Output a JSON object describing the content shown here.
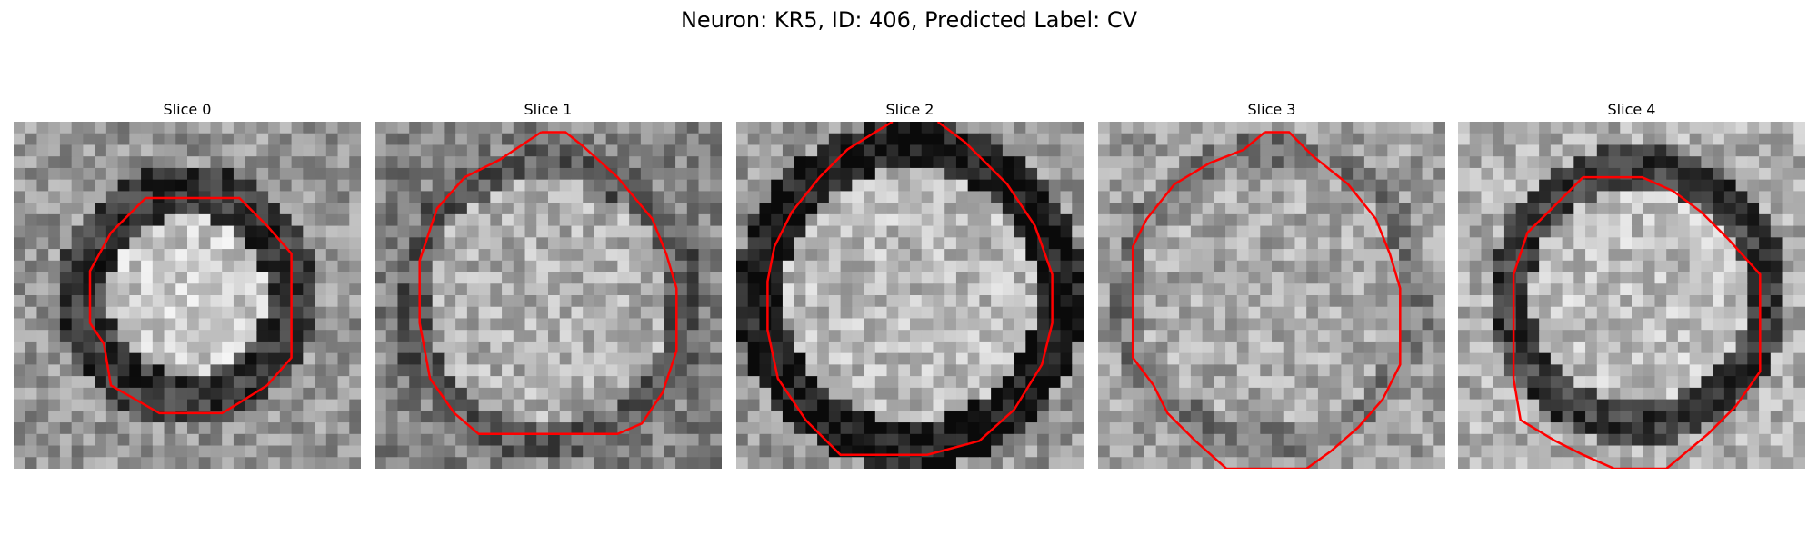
{
  "figure": {
    "title": "Neuron: KR5, ID: 406, Predicted Label: CV",
    "panels": [
      {
        "label": "Slice 0",
        "image": "noisy grayscale microscopy crop with dark ring around bright round cell body"
      },
      {
        "label": "Slice 1",
        "image": "noisy grayscale microscopy crop with large bright round cell body"
      },
      {
        "label": "Slice 2",
        "image": "noisy grayscale microscopy crop with thick dark ring around cell body"
      },
      {
        "label": "Slice 3",
        "image": "noisy grayscale microscopy crop with faint round cell body"
      },
      {
        "label": "Slice 4",
        "image": "noisy grayscale microscopy crop with dark ring around round cell body"
      }
    ],
    "contour_color": "#ff0000"
  }
}
